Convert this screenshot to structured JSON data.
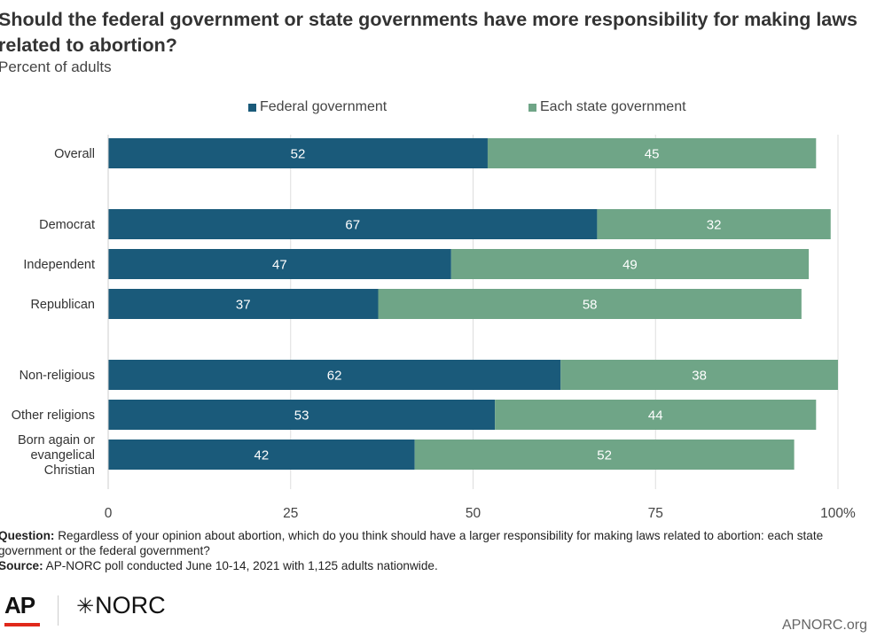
{
  "title": "Should the federal government or state governments have more responsibility for making laws related to abortion?",
  "subtitle": "Percent of adults",
  "colors": {
    "federal": "#1a5a7a",
    "state": "#6fa587",
    "grid": "#dddddd",
    "axis": "#cccccc"
  },
  "chart_data": {
    "type": "bar",
    "orientation": "horizontal",
    "stacked": true,
    "title": "Should the federal government or state governments have more responsibility for making laws related to abortion?",
    "subtitle": "Percent of adults",
    "categories": [
      "Overall",
      "Democrat",
      "Independent",
      "Republican",
      "Non-religious",
      "Other religions",
      "Born again or evangelical Christian"
    ],
    "category_lines": [
      [
        "Overall"
      ],
      [
        "Democrat"
      ],
      [
        "Independent"
      ],
      [
        "Republican"
      ],
      [
        "Non-religious"
      ],
      [
        "Other religions"
      ],
      [
        "Born again or",
        "evangelical",
        "Christian"
      ]
    ],
    "groups": [
      [
        0
      ],
      [
        1,
        2,
        3
      ],
      [
        4,
        5,
        6
      ]
    ],
    "series": [
      {
        "name": "Federal government",
        "values": [
          52,
          67,
          47,
          37,
          62,
          53,
          42
        ]
      },
      {
        "name": "Each state government",
        "values": [
          45,
          32,
          49,
          58,
          38,
          44,
          52
        ]
      }
    ],
    "xlim": [
      0,
      100
    ],
    "xticks": [
      0,
      25,
      50,
      75,
      100
    ],
    "xtick_labels": [
      "0",
      "25",
      "50",
      "75",
      "100%"
    ],
    "grid": true,
    "legend": "top"
  },
  "footer": {
    "question_label": "Question:",
    "question_text": " Regardless of your opinion about abortion, which do you think should have a larger responsibility for making laws related to abortion: each state government or the federal government?",
    "source_label": "Source:",
    "source_text": " AP-NORC poll conducted June 10-14, 2021 with 1,125 adults nationwide.",
    "logo_ap": "AP",
    "logo_norc": "NORC",
    "site": "APNORC.org"
  }
}
